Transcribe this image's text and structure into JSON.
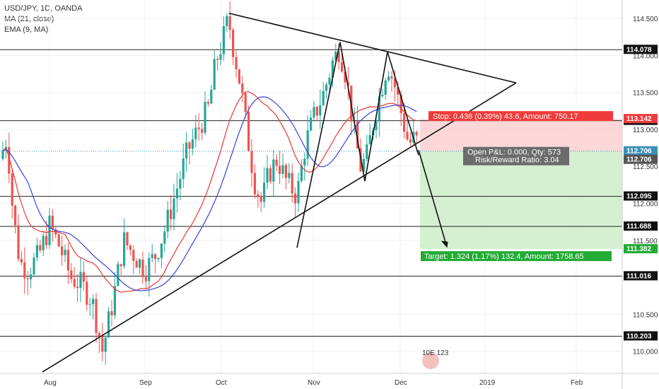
{
  "chart_data": {
    "type": "candlestick",
    "title": "USD/JPY, 1D, OANDA",
    "indicators": [
      "MA (21, close)",
      "EMA (9, MA)"
    ],
    "ylim": [
      109.7,
      114.75
    ],
    "y_ticks": [
      110.0,
      110.5,
      111.0,
      111.5,
      112.0,
      112.5,
      113.0,
      113.5,
      114.0,
      114.5
    ],
    "y_tick_labels": [
      "110.000",
      "110.500",
      "111.000",
      "111.500",
      "112.000",
      "112.500",
      "113.000",
      "113.500",
      "114.000",
      "114.500"
    ],
    "x_labels": [
      "Aug",
      "Sep",
      "Oct",
      "Nov",
      "Dec",
      "2019",
      "Feb"
    ],
    "horizontal_levels": [
      {
        "value": 114.078,
        "label": "114.078"
      },
      {
        "value": 113.118,
        "label": "113.118"
      },
      {
        "value": 112.095,
        "label": "112.095"
      },
      {
        "value": 111.688,
        "label": "111.688"
      },
      {
        "value": 111.016,
        "label": "111.016"
      },
      {
        "value": 110.203,
        "label": "110.203"
      }
    ],
    "price_tags": [
      {
        "value": 113.142,
        "label": "113.142",
        "color": "#ef3b3b"
      },
      {
        "value": 112.706,
        "label": "112.706",
        "color": "#3d8fb8"
      },
      {
        "value": 112.706,
        "label": "112.706",
        "color": "#555555"
      },
      {
        "value": 111.382,
        "label": "111.382",
        "color": "#22ab35"
      }
    ],
    "position": {
      "entry": 112.706,
      "stop": 113.142,
      "target": 111.382,
      "stop_label": "Stop: 0.436 (0.39%) 43.6, Amount: 750.17",
      "open_label": "Open P&L: 0.000, Qty: 573",
      "rr_label": "Risk/Reward Ratio: 3.04",
      "target_label": "Target: 1.324 (1.17%) 132.4, Amount: 1758.65"
    },
    "colors": {
      "up": "#26a69a",
      "down": "#ef5350",
      "ma": "#e53935",
      "ema": "#3f3fd9",
      "stop": "#ef3b3b",
      "target": "#22ab35",
      "lines": "#111111"
    },
    "watermark_text": "10E 123"
  }
}
